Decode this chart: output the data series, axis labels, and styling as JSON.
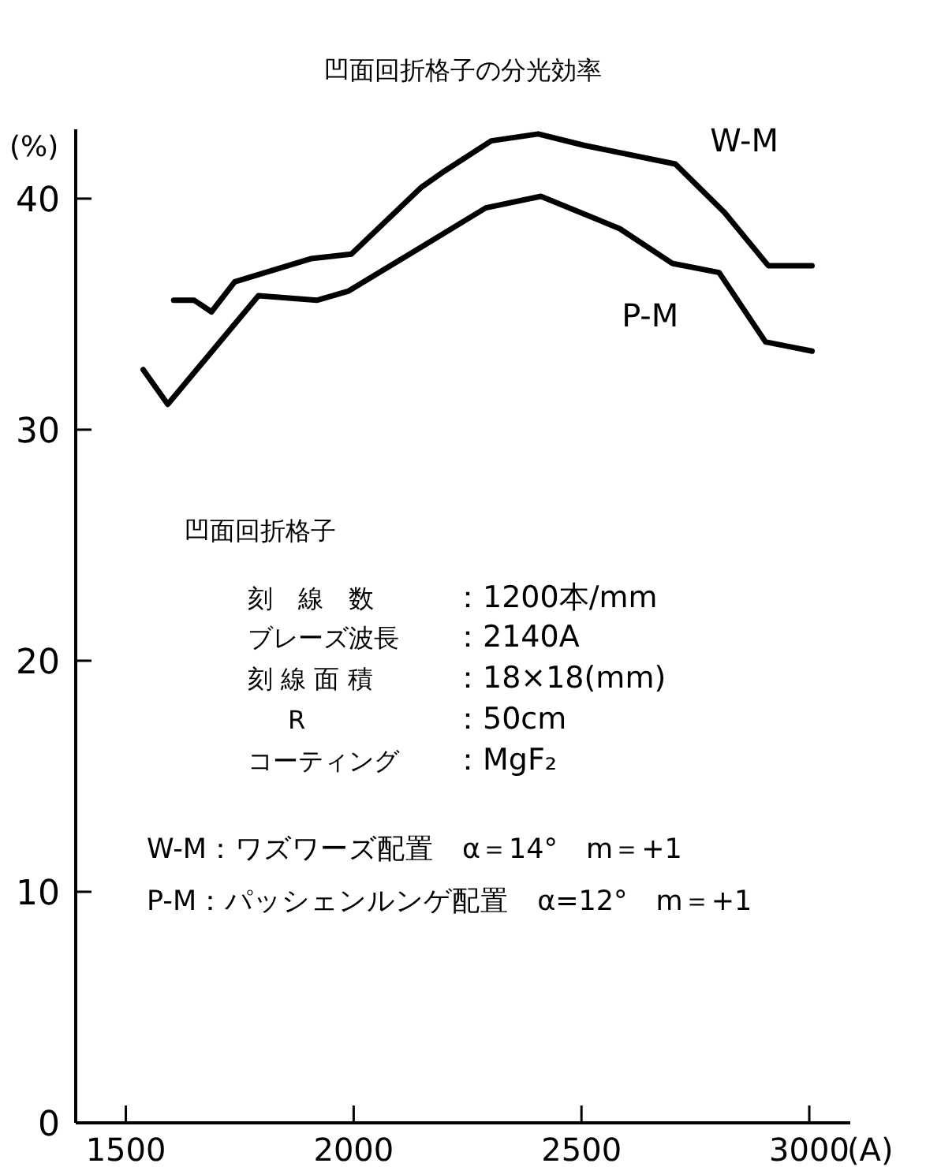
{
  "chart_data": {
    "type": "line",
    "title": "凹面回折格子の分光効率",
    "xlabel": "(A)",
    "ylabel": "(%)",
    "xlim": [
      1390,
      3090
    ],
    "ylim": [
      0,
      43
    ],
    "xticks": [
      1500,
      2000,
      2500,
      3000
    ],
    "yticks": [
      0,
      10,
      20,
      30,
      40
    ],
    "series": [
      {
        "name": "W-M",
        "color": "#000000",
        "x": [
          1605,
          1650,
          1688,
          1739,
          1906,
          1995,
          2149,
          2200,
          2302,
          2405,
          2507,
          2706,
          2814,
          2910,
          3006
        ],
        "values": [
          35.6,
          35.6,
          35.1,
          36.4,
          37.4,
          37.6,
          40.5,
          41.2,
          42.5,
          42.8,
          42.3,
          41.5,
          39.4,
          37.1,
          37.1
        ]
      },
      {
        "name": "P-M",
        "color": "#000000",
        "x": [
          1538,
          1592,
          1791,
          1919,
          1989,
          2123,
          2290,
          2411,
          2584,
          2699,
          2802,
          2904,
          3006
        ],
        "values": [
          32.6,
          31.1,
          35.8,
          35.6,
          36.0,
          37.6,
          39.6,
          40.1,
          38.7,
          37.2,
          36.8,
          33.8,
          33.4
        ]
      }
    ],
    "annotations": [
      "凹面回折格子",
      "刻　線　数",
      "：1200本/mm",
      "ブレーズ波長",
      "：2140A",
      "刻 線 面 積",
      "：18×18(mm)",
      "R",
      "：50cm",
      "コーティング",
      "：MgF₂",
      "W-M：ワズワーズ配置　α＝14°　m＝+1",
      "P-M：パッシェンルンゲ配置　α=12°　m＝+1"
    ]
  }
}
